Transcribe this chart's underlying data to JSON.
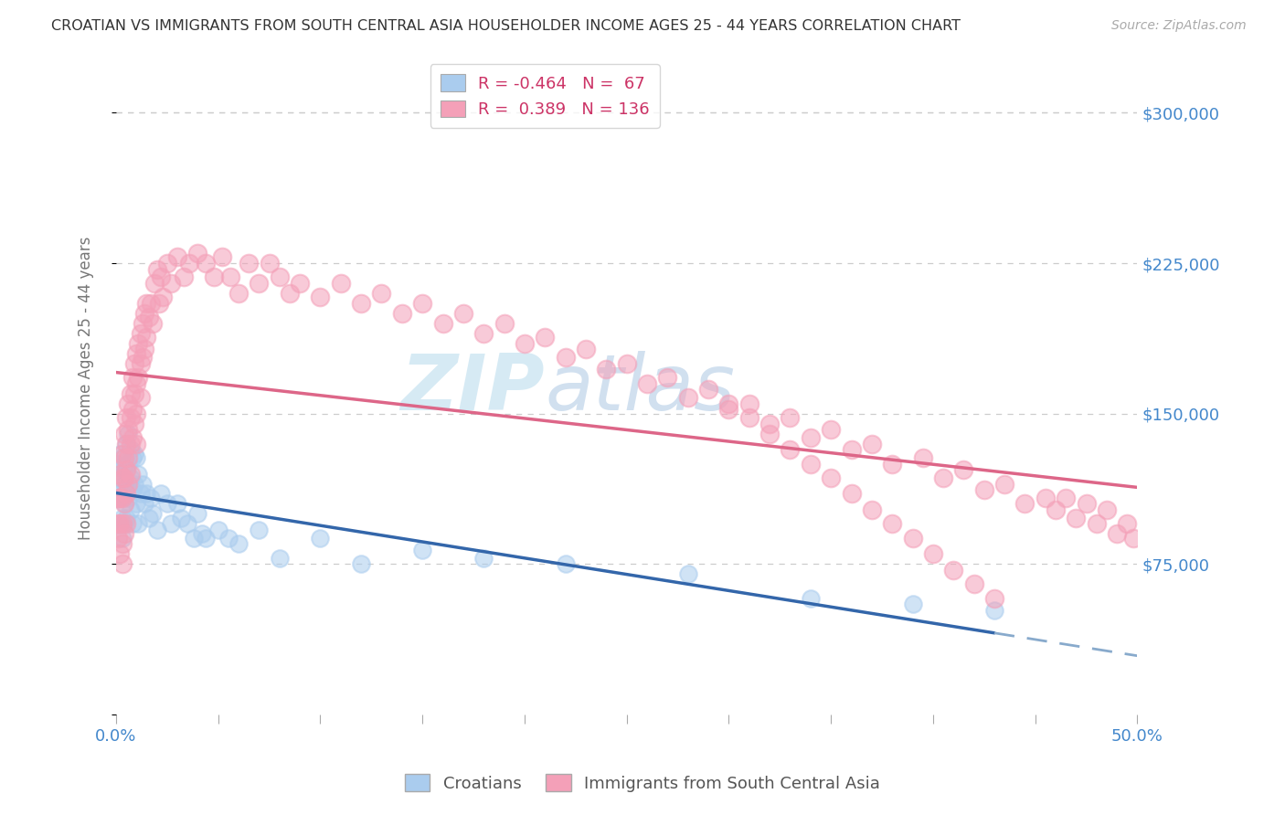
{
  "title": "CROATIAN VS IMMIGRANTS FROM SOUTH CENTRAL ASIA HOUSEHOLDER INCOME AGES 25 - 44 YEARS CORRELATION CHART",
  "source": "Source: ZipAtlas.com",
  "ylabel": "Householder Income Ages 25 - 44 years",
  "blue_R": -0.464,
  "blue_N": 67,
  "pink_R": 0.389,
  "pink_N": 136,
  "blue_color": "#aaccee",
  "pink_color": "#f4a0b8",
  "blue_line_color": "#3366aa",
  "blue_dash_color": "#88aacc",
  "pink_line_color": "#dd6688",
  "legend_blue_label": "Croatians",
  "legend_pink_label": "Immigrants from South Central Asia",
  "watermark_text": "ZIPAtlas",
  "watermark_color": "#bbddee",
  "axis_label_color": "#4488cc",
  "grid_color": "#cccccc",
  "title_color": "#333333",
  "source_color": "#aaaaaa",
  "xlim": [
    0.0,
    0.5
  ],
  "ylim": [
    0,
    325000
  ],
  "blue_x": [
    0.001,
    0.001,
    0.001,
    0.002,
    0.002,
    0.002,
    0.002,
    0.003,
    0.003,
    0.003,
    0.003,
    0.003,
    0.004,
    0.004,
    0.004,
    0.004,
    0.005,
    0.005,
    0.005,
    0.005,
    0.006,
    0.006,
    0.006,
    0.007,
    0.007,
    0.007,
    0.008,
    0.008,
    0.008,
    0.009,
    0.009,
    0.01,
    0.01,
    0.011,
    0.011,
    0.012,
    0.013,
    0.014,
    0.015,
    0.016,
    0.017,
    0.018,
    0.02,
    0.022,
    0.025,
    0.027,
    0.03,
    0.032,
    0.035,
    0.038,
    0.04,
    0.042,
    0.044,
    0.05,
    0.055,
    0.06,
    0.07,
    0.08,
    0.1,
    0.12,
    0.15,
    0.18,
    0.22,
    0.28,
    0.34,
    0.39,
    0.43
  ],
  "blue_y": [
    125000,
    118000,
    108000,
    130000,
    120000,
    110000,
    95000,
    128000,
    118000,
    108000,
    98000,
    88000,
    125000,
    115000,
    105000,
    95000,
    135000,
    122000,
    112000,
    98000,
    140000,
    125000,
    108000,
    132000,
    118000,
    102000,
    128000,
    112000,
    95000,
    130000,
    115000,
    128000,
    105000,
    120000,
    95000,
    110000,
    115000,
    105000,
    110000,
    98000,
    108000,
    100000,
    92000,
    110000,
    105000,
    95000,
    105000,
    98000,
    95000,
    88000,
    100000,
    90000,
    88000,
    92000,
    88000,
    85000,
    92000,
    78000,
    88000,
    75000,
    82000,
    78000,
    75000,
    70000,
    58000,
    55000,
    52000
  ],
  "pink_x": [
    0.001,
    0.001,
    0.001,
    0.002,
    0.002,
    0.002,
    0.002,
    0.003,
    0.003,
    0.003,
    0.003,
    0.003,
    0.003,
    0.004,
    0.004,
    0.004,
    0.004,
    0.004,
    0.005,
    0.005,
    0.005,
    0.005,
    0.005,
    0.006,
    0.006,
    0.006,
    0.006,
    0.007,
    0.007,
    0.007,
    0.007,
    0.008,
    0.008,
    0.008,
    0.009,
    0.009,
    0.009,
    0.01,
    0.01,
    0.01,
    0.01,
    0.011,
    0.011,
    0.012,
    0.012,
    0.012,
    0.013,
    0.013,
    0.014,
    0.014,
    0.015,
    0.015,
    0.016,
    0.017,
    0.018,
    0.019,
    0.02,
    0.021,
    0.022,
    0.023,
    0.025,
    0.027,
    0.03,
    0.033,
    0.036,
    0.04,
    0.044,
    0.048,
    0.052,
    0.056,
    0.06,
    0.065,
    0.07,
    0.075,
    0.08,
    0.085,
    0.09,
    0.1,
    0.11,
    0.12,
    0.13,
    0.14,
    0.15,
    0.16,
    0.17,
    0.18,
    0.19,
    0.2,
    0.21,
    0.22,
    0.23,
    0.24,
    0.25,
    0.26,
    0.27,
    0.28,
    0.29,
    0.3,
    0.31,
    0.32,
    0.33,
    0.34,
    0.35,
    0.36,
    0.37,
    0.38,
    0.395,
    0.405,
    0.415,
    0.425,
    0.435,
    0.445,
    0.455,
    0.46,
    0.465,
    0.47,
    0.475,
    0.48,
    0.485,
    0.49,
    0.495,
    0.498,
    0.3,
    0.31,
    0.32,
    0.33,
    0.34,
    0.35,
    0.36,
    0.37,
    0.38,
    0.39,
    0.4,
    0.41,
    0.42,
    0.43
  ],
  "pink_y": [
    95000,
    88000,
    108000,
    120000,
    108000,
    95000,
    80000,
    130000,
    118000,
    108000,
    95000,
    85000,
    75000,
    140000,
    128000,
    118000,
    105000,
    90000,
    148000,
    135000,
    122000,
    110000,
    95000,
    155000,
    142000,
    128000,
    115000,
    160000,
    148000,
    135000,
    120000,
    168000,
    152000,
    138000,
    175000,
    160000,
    145000,
    180000,
    165000,
    150000,
    135000,
    185000,
    168000,
    190000,
    175000,
    158000,
    195000,
    178000,
    200000,
    182000,
    205000,
    188000,
    198000,
    205000,
    195000,
    215000,
    222000,
    205000,
    218000,
    208000,
    225000,
    215000,
    228000,
    218000,
    225000,
    230000,
    225000,
    218000,
    228000,
    218000,
    210000,
    225000,
    215000,
    225000,
    218000,
    210000,
    215000,
    208000,
    215000,
    205000,
    210000,
    200000,
    205000,
    195000,
    200000,
    190000,
    195000,
    185000,
    188000,
    178000,
    182000,
    172000,
    175000,
    165000,
    168000,
    158000,
    162000,
    152000,
    155000,
    145000,
    148000,
    138000,
    142000,
    132000,
    135000,
    125000,
    128000,
    118000,
    122000,
    112000,
    115000,
    105000,
    108000,
    102000,
    108000,
    98000,
    105000,
    95000,
    102000,
    90000,
    95000,
    88000,
    155000,
    148000,
    140000,
    132000,
    125000,
    118000,
    110000,
    102000,
    95000,
    88000,
    80000,
    72000,
    65000,
    58000
  ]
}
